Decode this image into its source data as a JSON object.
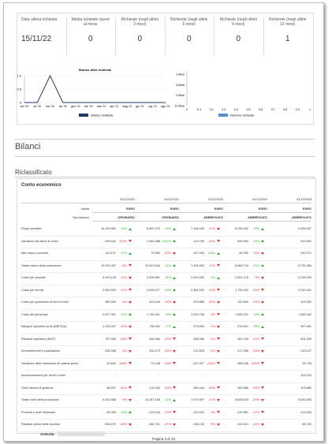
{
  "stats": [
    {
      "label": "Data ultima richiesta",
      "value": "15/11/22"
    },
    {
      "label": "Media richieste report al mese",
      "value": "0"
    },
    {
      "label": "Richieste (negli ultimi 3 mesi)",
      "value": "0"
    },
    {
      "label": "Richieste (negli ultimi 6 mesi)",
      "value": "0"
    },
    {
      "label": "Richieste (negli ultimi 9 mesi)",
      "value": "0"
    },
    {
      "label": "Richieste (negli ultimi 12 mesi)",
      "value": "1"
    }
  ],
  "history_chart": {
    "type": "line",
    "title": "Storico delle richieste",
    "categories": [
      "set '20",
      "ott '20",
      "nov '20",
      "dic '20",
      "gen '21",
      "feb '21",
      "mar '21",
      "apr '21",
      "mag '21",
      "giu '21",
      "lug '21",
      "ago '21"
    ],
    "values": [
      0,
      0,
      1,
      0,
      0,
      0,
      0,
      0,
      0,
      0,
      0,
      0
    ],
    "ylim": [
      0,
      1
    ],
    "yticks": [
      {
        "value": 1,
        "label": "1.0"
      },
      0.5,
      0
    ],
    "legend": "Storico richieste",
    "color": "#1f3a5f"
  },
  "requests_chart": {
    "type": "bar",
    "categories": [
      "3 Mesi",
      "6 Mesi",
      "9 Mesi",
      "12 Mesi"
    ],
    "values": [
      0,
      0,
      0,
      0
    ],
    "xlim": [
      0,
      1
    ],
    "xticks": [
      0,
      0.1,
      0.2,
      0.3,
      0.4,
      0.5,
      0.6,
      0.7,
      0.8,
      0.9,
      1
    ],
    "legend": "Numero richieste",
    "color": "#5b8bd0"
  },
  "section": "Bilanci",
  "subsection": "Riclassificato",
  "table": {
    "title": "Conto economico",
    "dates": [
      "31/12/2022",
      "31/12/2021",
      "31/12/2020",
      "31/12/2019",
      "31/12/2018"
    ],
    "meta": [
      {
        "label": "Valuta",
        "values": [
          "EURO",
          "EURO",
          "EURO",
          "EURO",
          "EURO"
        ]
      },
      {
        "label": "Tipo bilancio",
        "values": [
          "ORDINARIO",
          "ORDINARIO",
          "ABBREVIATO",
          "ABBREVIATO",
          "ABBREVIATO"
        ]
      }
    ],
    "rows": [
      {
        "label": "Ricavi operativi",
        "values": [
          "10.100.982",
          "8.857.375",
          "7.165.205",
          "8.255.162",
          "6.395.057"
        ],
        "changes": [
          "14%",
          "24%",
          "-17%",
          "29%"
        ]
      },
      {
        "label": "Variazioni dei lavori in corso",
        "values": [
          "-195.042",
          "1.982.488",
          "113.784",
          "649.964",
          "516.652"
        ],
        "changes": [
          "-110%",
          "1242%",
          "-82%",
          "29%"
        ]
      },
      {
        "label": "Altri ricavi e proventi",
        "values": [
          "115.137",
          "73.383",
          "147.954",
          "64.990",
          "220.370"
        ],
        "changes": [
          "57%",
          "-50%",
          "128%",
          "-71%"
        ]
      },
      {
        "label": "Totale valore della produzione",
        "values": [
          "10.031.057",
          "10.913.254",
          "7.426.953",
          "8.969.716",
          "5.732.384"
        ],
        "changes": [
          "-8%",
          "41%",
          "-17%",
          "21%"
        ]
      },
      {
        "label": "Costo per acquisti",
        "values": [
          "3.490.145",
          "3.906.981",
          "2.429.553",
          "2.301.176",
          "2.236.094"
        ],
        "changes": [
          "-11%",
          "61%",
          "5%",
          "-3%"
        ]
      },
      {
        "label": "Costo per servizi",
        "values": [
          "2.940.929",
          "3.535.077",
          "2.381.632",
          "1.799.240",
          "2.249.341"
        ],
        "changes": [
          "-17%",
          "49%",
          "-32%",
          "-20%"
        ]
      },
      {
        "label": "Costo per godimento di beni di terzi",
        "values": [
          "380.280",
          "403.445",
          "203.858",
          "152.845",
          "102.390"
        ],
        "changes": [
          "-5%",
          "-98%",
          "-40%",
          "-43%"
        ]
      },
      {
        "label": "Costo del personale",
        "values": [
          "2.007.391",
          "1.789.451",
          "1.503.736",
          "1.555.031",
          "1.365.342"
        ],
        "changes": [
          "12%",
          "18%",
          "-3%",
          "14%"
        ]
      },
      {
        "label": "Margine operativo lordo (EBITDA)",
        "values": [
          "1.125.337",
          "796.342",
          "579.659",
          "578.491",
          "497.081"
        ],
        "changes": [
          "-51%",
          "17%",
          "-1%",
          "18%"
        ]
      },
      {
        "label": "Risultato operativo (EBIT)",
        "values": [
          "787.069",
          "466.084",
          "358.056",
          "361.193",
          "201.325"
        ],
        "changes": [
          "-69%",
          "-30%",
          "-1%",
          "-10%"
        ]
      },
      {
        "label": "Ammortamenti e svalutazioni",
        "values": [
          "338.268",
          "330.273",
          "221.603",
          "217.298",
          "120.147"
        ],
        "changes": [
          "-3%",
          "-49%",
          "-2%",
          "-53%"
        ]
      },
      {
        "label": "Variazioni delle rimanenze di materie prime",
        "values": [
          "49.830",
          "-73.198",
          "-207.927",
          "388.166",
          "93.738"
        ],
        "changes": [
          "-166%",
          "-65%",
          "-234%",
          "-400%"
        ]
      },
      {
        "label": "Accantonamenti per rischi e oneri",
        "values": [
          "-",
          "-",
          "-",
          "-",
          "104.100"
        ],
        "changes": [
          null,
          null,
          null,
          null
        ]
      },
      {
        "label": "Oneri diversi di gestione",
        "values": [
          "88.257",
          "176.424",
          "359.444",
          "394.666",
          "103.885"
        ],
        "changes": [
          "-50%",
          "-59%",
          "-60%",
          "-55%"
        ]
      },
      {
        "label": "Totale costi della produzione",
        "values": [
          "9.263.988",
          "10.047.185",
          "7.070.897",
          "8.608.523",
          "5.530.563"
        ],
        "changes": [
          "-9%",
          "42%",
          "-17%",
          "-23%"
        ]
      },
      {
        "label": "Proventi e oneri finanziari",
        "values": [
          "-89.495",
          "-103.318",
          "-119.924",
          "-131.891",
          "-114.553"
        ],
        "changes": [
          "14%",
          "-13%",
          "-9%",
          "-17%"
        ]
      },
      {
        "label": "Risultato prima delle imposte",
        "values": [
          "698.579",
          "382.751",
          "238.132",
          "229.312",
          "86.760"
        ],
        "changes": [
          "-80%",
          "-57%",
          "-8%",
          "-10%"
        ]
      }
    ]
  },
  "footer": {
    "company_label": "Azienda:",
    "page": "Pagina 3 di 19"
  }
}
